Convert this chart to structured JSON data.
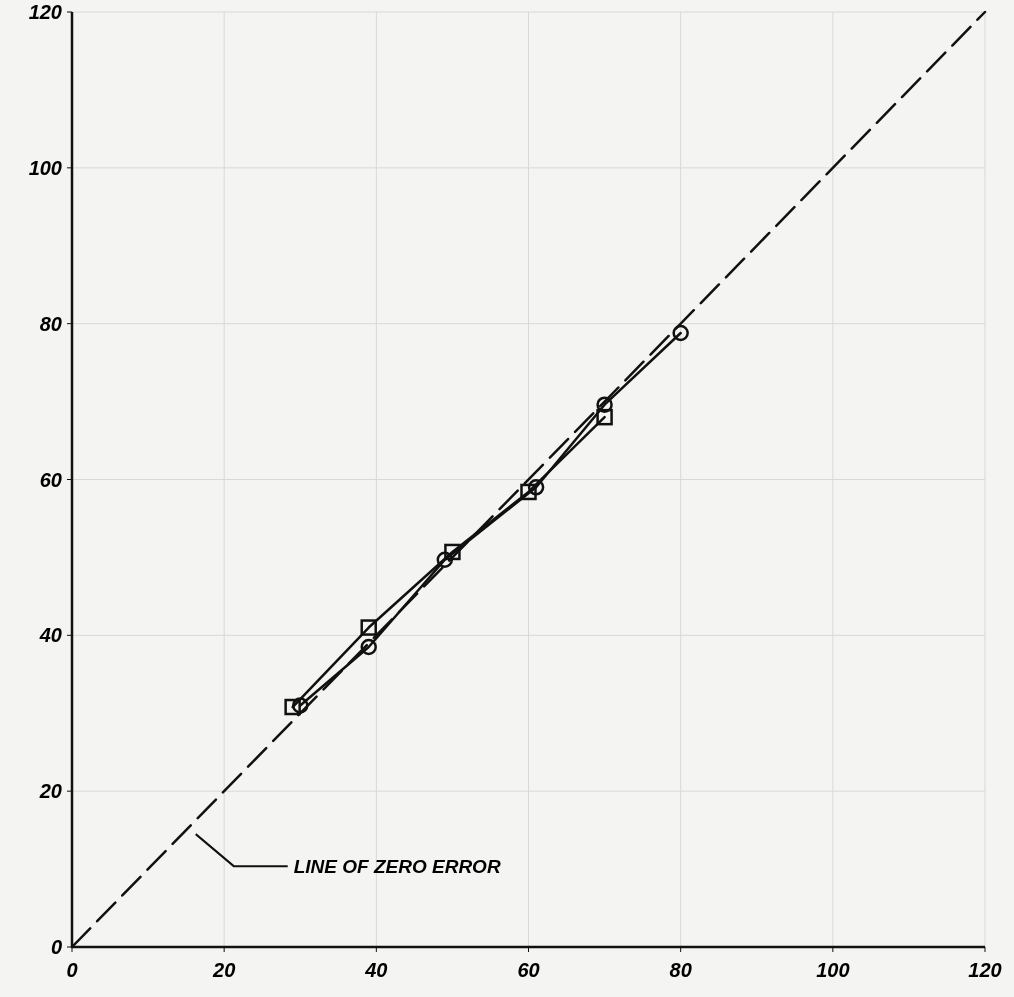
{
  "chart_data": {
    "type": "line",
    "xlim": [
      0,
      120
    ],
    "ylim": [
      0,
      120
    ],
    "xticks": [
      0,
      20,
      40,
      60,
      80,
      100,
      120
    ],
    "yticks": [
      0,
      20,
      40,
      60,
      80,
      100,
      120
    ],
    "grid": true,
    "series": [
      {
        "color": "#111111",
        "marker": "circle",
        "x": [
          30,
          39,
          49,
          61,
          70,
          80
        ],
        "values": [
          31,
          38.5,
          49.7,
          59,
          69.6,
          78.8
        ]
      },
      {
        "color": "#111111",
        "marker": "square",
        "x": [
          29,
          39,
          50,
          60,
          70
        ],
        "values": [
          30.8,
          41,
          50.7,
          58.4,
          68
        ]
      },
      {
        "color": "#111111",
        "marker": "none",
        "line_style": "dashed",
        "x": [
          0,
          120
        ],
        "values": [
          0,
          120
        ]
      }
    ],
    "annotations": [
      {
        "text": "LINE OF ZERO ERROR",
        "x": 16,
        "y": 15
      }
    ]
  }
}
